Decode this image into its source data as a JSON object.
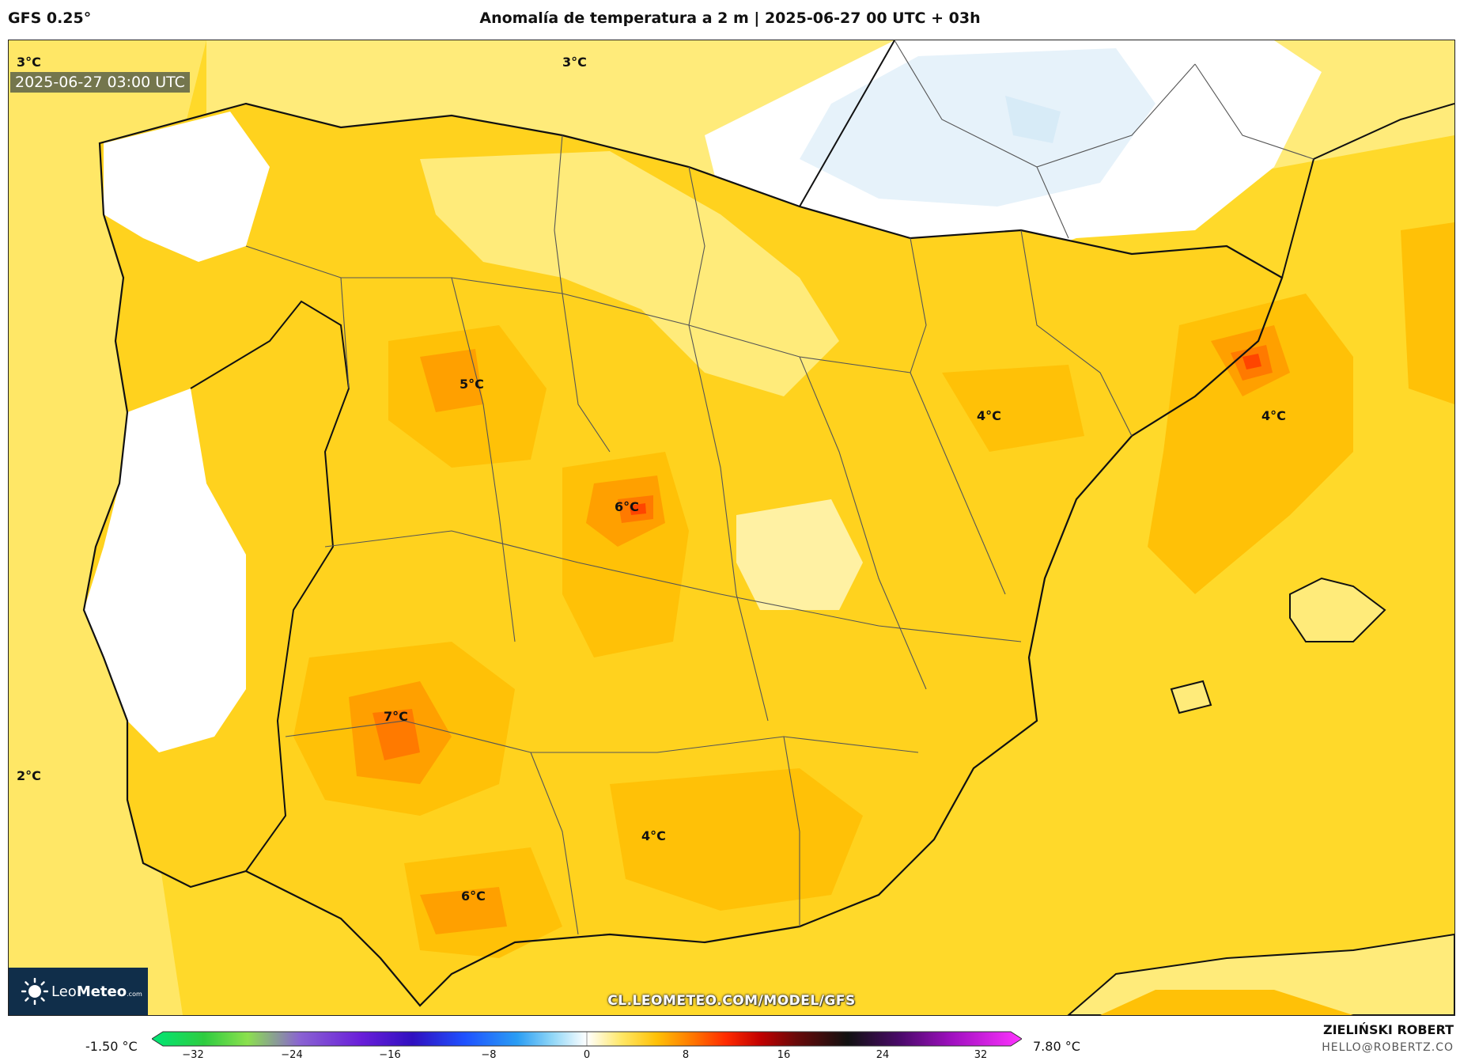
{
  "header": {
    "model": "GFS 0.25°",
    "title": "Anomalía de temperatura a 2 m | 2025-06-27 00 UTC + 03h"
  },
  "map": {
    "valid_time": "2025-06-27 03:00 UTC",
    "labels": [
      {
        "text": "3°C",
        "id": "nw"
      },
      {
        "text": "3°C",
        "id": "n"
      },
      {
        "text": "5°C",
        "id": "c1"
      },
      {
        "text": "4°C",
        "id": "ne1"
      },
      {
        "text": "4°C",
        "id": "ne2"
      },
      {
        "text": "6°C",
        "id": "c2"
      },
      {
        "text": "7°C",
        "id": "sw"
      },
      {
        "text": "2°C",
        "id": "w"
      },
      {
        "text": "4°C",
        "id": "s"
      },
      {
        "text": "6°C",
        "id": "s2"
      }
    ],
    "watermark": "CL.LEOMETEO.COM/MODEL/GFS",
    "logo": {
      "brand_light": "Leo",
      "brand_bold": "Meteo",
      "suffix": ".com"
    }
  },
  "legend": {
    "min_label": "-1.50 °C",
    "max_label": "7.80 °C",
    "ticks": [
      "−32",
      "−24",
      "−16",
      "−8",
      "0",
      "8",
      "16",
      "24",
      "32"
    ],
    "colors": {
      "ocean_warm": "#ffd92a",
      "land_light": "#ffeb7a",
      "warm": "#ffc107",
      "hot": "#ffa000",
      "hotter": "#ff7a00",
      "hottest": "#ff4500",
      "cool": "#e6f2fa"
    }
  },
  "author": {
    "name": "ZIELIŃSKI ROBERT",
    "email": "HELLO@ROBERTZ.CO"
  }
}
